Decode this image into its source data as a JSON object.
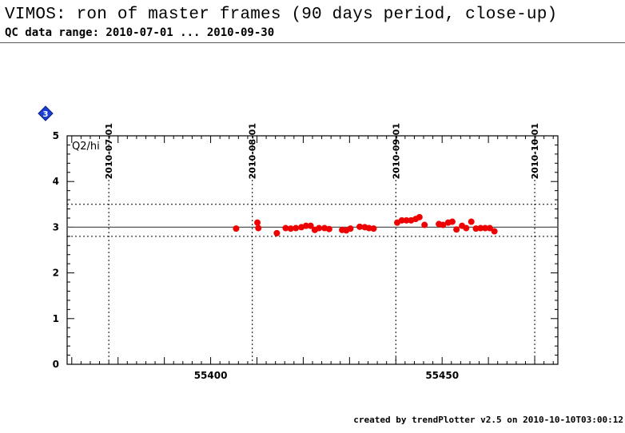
{
  "header": {
    "title": "VIMOS: ron of master frames (90 days period, close-up)",
    "subtitle": "QC data range: 2010-07-01 ... 2010-09-30"
  },
  "footer": {
    "credit": "created by trendPlotter v2.5 on 2010-10-10T03:00:12"
  },
  "chart_data": {
    "type": "scatter",
    "marker_label": "3",
    "panel_label": "Q2/hi",
    "xlim": [
      55369,
      55475
    ],
    "ylim": [
      0,
      5
    ],
    "x_ticks": [
      55400,
      55450
    ],
    "y_ticks": [
      0,
      1,
      2,
      3,
      4,
      5
    ],
    "date_markers": [
      {
        "label": "2010-07-01",
        "mjd": 55378
      },
      {
        "label": "2010-08-01",
        "mjd": 55409
      },
      {
        "label": "2010-09-01",
        "mjd": 55440
      },
      {
        "label": "2010-10-01",
        "mjd": 55470
      }
    ],
    "reference_line": 3.0,
    "threshold_lines": [
      2.8,
      3.5
    ],
    "grid": false,
    "colors": {
      "points": "#ee0000",
      "marker": "#1a3fd6"
    },
    "series": [
      {
        "x": [
          55405.5,
          55410.1,
          55410.3,
          55414.3,
          55416.2,
          55417.3,
          55418.4,
          55419.6,
          55420.6,
          55421.6,
          55422.5,
          55423.4,
          55424.6,
          55425.6,
          55428.4,
          55429.3,
          55430.2,
          55432.2,
          55433.3,
          55434.2,
          55435.2,
          55440.3,
          55441.3,
          55442.3,
          55443.3,
          55444.3,
          55445.1,
          55446.2,
          55449.3,
          55450.2,
          55451.3,
          55452.2,
          55453.1,
          55454.3,
          55455.2,
          55456.3,
          55457.3,
          55458.3,
          55459.3,
          55460.3,
          55461.3
        ],
        "y": [
          2.97,
          3.1,
          2.98,
          2.87,
          2.98,
          2.97,
          2.98,
          3.0,
          3.03,
          3.03,
          2.94,
          2.98,
          2.98,
          2.96,
          2.94,
          2.93,
          2.97,
          3.01,
          3.0,
          2.98,
          2.97,
          3.1,
          3.15,
          3.15,
          3.15,
          3.18,
          3.22,
          3.05,
          3.07,
          3.05,
          3.1,
          3.12,
          2.95,
          3.03,
          2.98,
          3.12,
          2.97,
          2.98,
          2.98,
          2.98,
          2.91
        ]
      }
    ]
  }
}
